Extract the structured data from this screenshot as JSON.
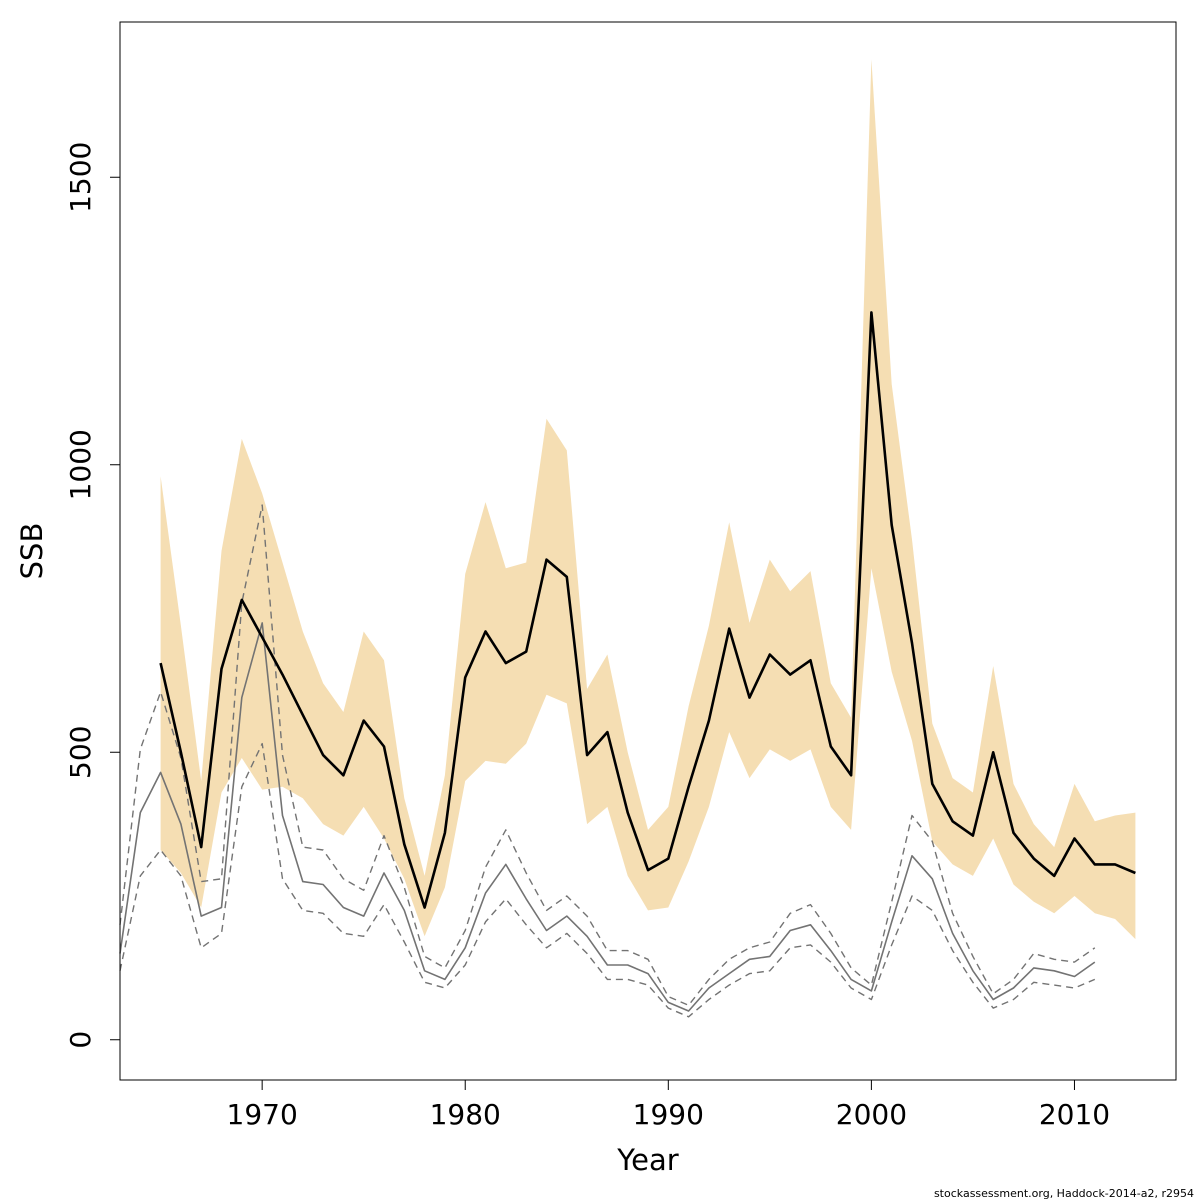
{
  "chart_data": {
    "type": "line",
    "title": "",
    "xlabel": "Year",
    "ylabel": "SSB",
    "xlim": [
      1963,
      2015
    ],
    "ylim": [
      -70,
      1770
    ],
    "x_ticks": [
      1970,
      1980,
      1990,
      2000,
      2010
    ],
    "y_ticks": [
      0,
      500,
      1000,
      1500
    ],
    "grid": false,
    "colors": {
      "band": "#f5deb3",
      "main_line": "#000000",
      "retro_line": "#737373",
      "retro_dashed": "#737373"
    },
    "band": {
      "name": "",
      "x": [
        1965,
        1966,
        1967,
        1968,
        1969,
        1970,
        1971,
        1972,
        1973,
        1974,
        1975,
        1976,
        1977,
        1978,
        1979,
        1980,
        1981,
        1982,
        1983,
        1984,
        1985,
        1986,
        1987,
        1988,
        1989,
        1990,
        1991,
        1992,
        1993,
        1994,
        1995,
        1996,
        1997,
        1998,
        1999,
        2000,
        2001,
        2002,
        2003,
        2004,
        2005,
        2006,
        2007,
        2008,
        2009,
        2010,
        2011,
        2012,
        2013
      ],
      "upper": [
        980,
        720,
        450,
        850,
        1045,
        950,
        830,
        710,
        620,
        570,
        710,
        660,
        420,
        285,
        460,
        810,
        935,
        820,
        830,
        1080,
        1025,
        610,
        670,
        500,
        365,
        405,
        580,
        720,
        900,
        725,
        835,
        780,
        815,
        620,
        560,
        1705,
        1140,
        870,
        550,
        455,
        430,
        650,
        445,
        375,
        335,
        445,
        380,
        390,
        395
      ],
      "lower": [
        330,
        290,
        230,
        430,
        490,
        435,
        440,
        420,
        375,
        355,
        405,
        350,
        280,
        180,
        265,
        450,
        485,
        480,
        515,
        600,
        585,
        375,
        405,
        285,
        225,
        230,
        310,
        405,
        535,
        455,
        505,
        485,
        505,
        405,
        365,
        820,
        640,
        520,
        345,
        305,
        285,
        350,
        270,
        240,
        220,
        250,
        220,
        210,
        175
      ]
    },
    "series": [
      {
        "name": "",
        "style": "solid-black",
        "x": [
          1965,
          1966,
          1967,
          1968,
          1969,
          1970,
          1971,
          1972,
          1973,
          1974,
          1975,
          1976,
          1977,
          1978,
          1979,
          1980,
          1981,
          1982,
          1983,
          1984,
          1985,
          1986,
          1987,
          1988,
          1989,
          1990,
          1991,
          1992,
          1993,
          1994,
          1995,
          1996,
          1997,
          1998,
          1999,
          2000,
          2001,
          2002,
          2003,
          2004,
          2005,
          2006,
          2007,
          2008,
          2009,
          2010,
          2011,
          2012,
          2013
        ],
        "values": [
          655,
          500,
          335,
          645,
          765,
          700,
          635,
          565,
          495,
          460,
          555,
          510,
          340,
          230,
          360,
          630,
          710,
          655,
          675,
          835,
          805,
          495,
          535,
          395,
          295,
          315,
          440,
          555,
          715,
          595,
          670,
          635,
          660,
          510,
          460,
          1265,
          895,
          690,
          445,
          380,
          355,
          500,
          360,
          315,
          285,
          350,
          305,
          305,
          290
        ]
      },
      {
        "name": "",
        "style": "solid-gray",
        "x": [
          1963,
          1964,
          1965,
          1966,
          1967,
          1968,
          1969,
          1970,
          1971,
          1972,
          1973,
          1974,
          1975,
          1976,
          1977,
          1978,
          1979,
          1980,
          1981,
          1982,
          1983,
          1984,
          1985,
          1986,
          1987,
          1988,
          1989,
          1990,
          1991,
          1992,
          1993,
          1994,
          1995,
          1996,
          1997,
          1998,
          1999,
          2000,
          2001,
          2002,
          2003,
          2004,
          2005,
          2006,
          2007,
          2008,
          2009,
          2010,
          2011
        ],
        "values": [
          150,
          395,
          465,
          375,
          215,
          230,
          595,
          725,
          390,
          275,
          270,
          230,
          215,
          290,
          225,
          120,
          105,
          160,
          255,
          305,
          245,
          190,
          215,
          180,
          130,
          130,
          115,
          65,
          50,
          90,
          115,
          140,
          145,
          190,
          200,
          155,
          105,
          85,
          205,
          320,
          280,
          185,
          120,
          70,
          90,
          125,
          120,
          110,
          135
        ]
      },
      {
        "name": "",
        "style": "dashed-gray",
        "x": [
          1963,
          1964,
          1965,
          1966,
          1967,
          1968,
          1969,
          1970,
          1971,
          1972,
          1973,
          1974,
          1975,
          1976,
          1977,
          1978,
          1979,
          1980,
          1981,
          1982,
          1983,
          1984,
          1985,
          1986,
          1987,
          1988,
          1989,
          1990,
          1991,
          1992,
          1993,
          1994,
          1995,
          1996,
          1997,
          1998,
          1999,
          2000,
          2001,
          2002,
          2003,
          2004,
          2005,
          2006,
          2007,
          2008,
          2009,
          2010,
          2011
        ],
        "values": [
          200,
          505,
          605,
          490,
          275,
          280,
          760,
          930,
          495,
          335,
          330,
          280,
          260,
          355,
          265,
          145,
          125,
          190,
          300,
          365,
          290,
          225,
          250,
          215,
          155,
          155,
          140,
          75,
          60,
          105,
          140,
          160,
          170,
          220,
          235,
          185,
          125,
          95,
          240,
          390,
          345,
          220,
          145,
          80,
          105,
          150,
          140,
          135,
          160
        ]
      },
      {
        "name": "",
        "style": "dashed-gray",
        "x": [
          1963,
          1964,
          1965,
          1966,
          1967,
          1968,
          1969,
          1970,
          1971,
          1972,
          1973,
          1974,
          1975,
          1976,
          1977,
          1978,
          1979,
          1980,
          1981,
          1982,
          1983,
          1984,
          1985,
          1986,
          1987,
          1988,
          1989,
          1990,
          1991,
          1992,
          1993,
          1994,
          1995,
          1996,
          1997,
          1998,
          1999,
          2000,
          2001,
          2002,
          2003,
          2004,
          2005,
          2006,
          2007,
          2008,
          2009,
          2010,
          2011
        ],
        "values": [
          120,
          285,
          330,
          285,
          160,
          185,
          440,
          515,
          280,
          225,
          220,
          185,
          180,
          235,
          170,
          100,
          90,
          130,
          205,
          245,
          200,
          160,
          185,
          150,
          105,
          105,
          95,
          55,
          40,
          70,
          95,
          115,
          120,
          160,
          165,
          135,
          90,
          70,
          165,
          250,
          225,
          155,
          100,
          55,
          70,
          100,
          95,
          90,
          105
        ]
      }
    ],
    "credit": "stockassessment.org, Haddock-2014-a2, r2954"
  }
}
